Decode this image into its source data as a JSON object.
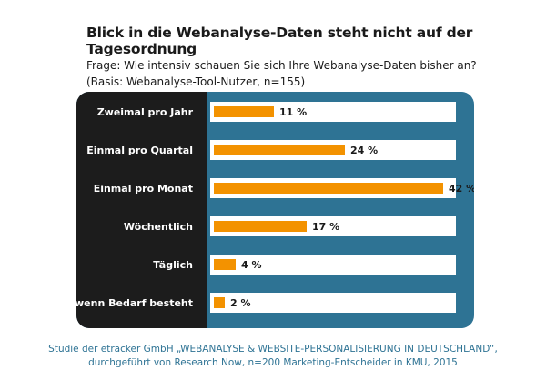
{
  "title": "Blick in die Webanalyse-Daten steht nicht auf der Tagesordnung",
  "question": {
    "line1": "Frage: Wie intensiv schauen Sie sich Ihre Webanalyse-Daten bisher an?",
    "line2": "(Basis: Webanalyse-Tool-Nutzer, n=155)"
  },
  "chart_data": {
    "type": "bar",
    "orientation": "horizontal",
    "categories": [
      "Zweimal pro Jahr",
      "Einmal pro Quartal",
      "Einmal pro Monat",
      "Wöchentlich",
      "Täglich",
      "Nur wenn Bedarf besteht"
    ],
    "values": [
      11,
      24,
      42,
      17,
      4,
      2
    ],
    "value_labels": [
      "11 %",
      "24 %",
      "42 %",
      "17 %",
      "4 %",
      "2 %"
    ],
    "xlim": [
      0,
      50
    ],
    "grid": false,
    "colors": {
      "bar": "#f39200",
      "row_background": "#ffffff",
      "panel": "#2e7394",
      "label_panel": "#1c1c1c",
      "label_text": "#ffffff"
    }
  },
  "footer": {
    "line1": "Studie der etracker GmbH „WEBANALYSE & WEBSITE-PERSONALISIERUNG IN DEUTSCHLAND“,",
    "line2": "durchgeführt von Research Now, n=200 Marketing-Entscheider in KMU, 2015"
  }
}
